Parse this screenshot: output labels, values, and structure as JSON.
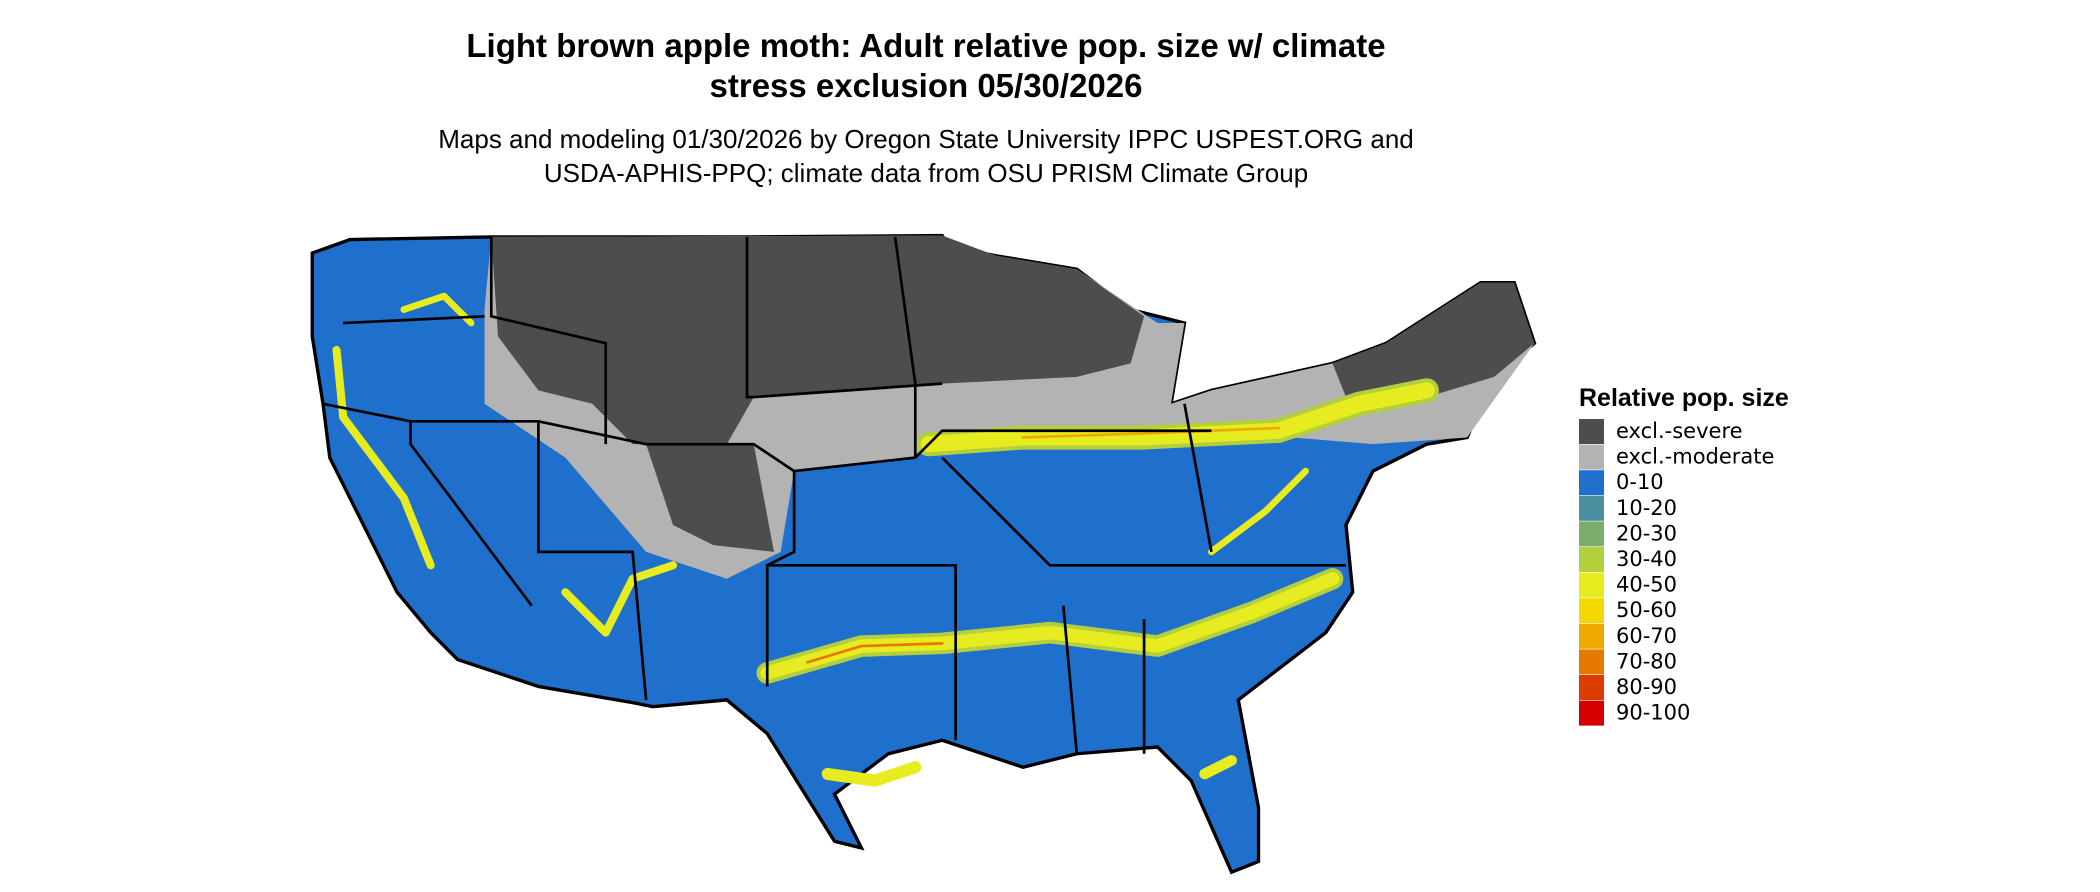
{
  "title_lines": [
    "Light brown apple moth: Adult relative pop. size w/ climate",
    "stress exclusion 05/30/2026"
  ],
  "subtitle_lines": [
    "Maps and modeling 01/30/2026 by Oregon State University IPPC USPEST.ORG and",
    "USDA-APHIS-PPQ; climate data from OSU PRISM Climate Group"
  ],
  "legend": {
    "title": "Relative pop. size",
    "items": [
      {
        "label": "excl.-severe",
        "color": "#4d4d4d"
      },
      {
        "label": "excl.-moderate",
        "color": "#b3b3b3"
      },
      {
        "label": "0-10",
        "color": "#1f6fcc"
      },
      {
        "label": "10-20",
        "color": "#4a8fa0"
      },
      {
        "label": "20-30",
        "color": "#7aad6e"
      },
      {
        "label": "30-40",
        "color": "#b3cf3e"
      },
      {
        "label": "40-50",
        "color": "#e6ec1f"
      },
      {
        "label": "50-60",
        "color": "#f5d800"
      },
      {
        "label": "60-70",
        "color": "#efaa00"
      },
      {
        "label": "70-80",
        "color": "#e67a00"
      },
      {
        "label": "80-90",
        "color": "#dc3c00"
      },
      {
        "label": "90-100",
        "color": "#d40000"
      }
    ]
  }
}
